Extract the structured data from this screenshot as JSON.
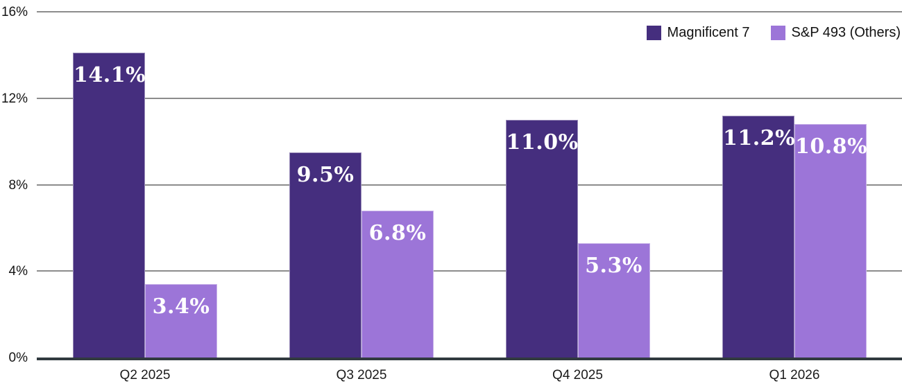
{
  "chart_data": {
    "type": "bar",
    "title": "",
    "xlabel": "",
    "ylabel": "",
    "categories": [
      "Q2 2025",
      "Q3 2025",
      "Q4 2025",
      "Q1 2026"
    ],
    "series": [
      {
        "name": "Magnificent 7",
        "color": "#452e7e",
        "values": [
          14.1,
          9.5,
          11.0,
          11.2
        ],
        "bar_labels": [
          "14.1%",
          "9.5%",
          "11.0%",
          "11.2%"
        ]
      },
      {
        "name": "S&P 493 (Others)",
        "color": "#9c75d8",
        "values": [
          3.4,
          6.8,
          5.3,
          10.8
        ],
        "bar_labels": [
          "3.4%",
          "6.8%",
          "5.3%",
          "10.8%"
        ]
      }
    ],
    "ylim": [
      0,
      16
    ],
    "yticks": [
      {
        "value": 0,
        "label": "0%"
      },
      {
        "value": 4,
        "label": "4%"
      },
      {
        "value": 8,
        "label": "8%"
      },
      {
        "value": 12,
        "label": "12%"
      },
      {
        "value": 16,
        "label": "16%"
      }
    ],
    "grid": true,
    "legend_position": "top-right"
  },
  "layout_colors": {
    "gridline": "#8c8c8c",
    "axis_line": "#313a3f",
    "bar_label_text": "#ffffff",
    "tick_text": "#141414"
  }
}
